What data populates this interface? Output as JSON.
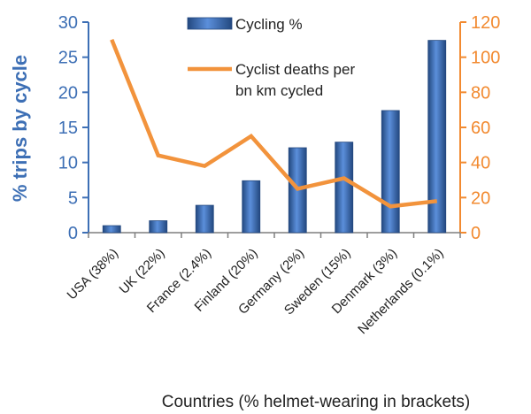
{
  "chart_data": {
    "type": "bar",
    "categories": [
      "USA (38%)",
      "UK (22%)",
      "France (2.4%)",
      "Finland (20%)",
      "Germany (2%)",
      "Sweden (15%)",
      "Denmark (3%)",
      "Netherlands (0.1%)"
    ],
    "series": [
      {
        "name": "Cycling %",
        "type": "bar",
        "axis": "left",
        "values": [
          1,
          1.7,
          3.9,
          7.4,
          12.1,
          12.9,
          17.4,
          27.4
        ]
      },
      {
        "name_lines": [
          "Cyclist deaths per",
          "bn km cycled"
        ],
        "type": "line",
        "axis": "right",
        "values": [
          110,
          44,
          38,
          55,
          25,
          31,
          15,
          18
        ]
      }
    ],
    "xlabel": "Countries (% helmet-wearing in brackets)",
    "ylabel": "% trips by cycle",
    "ylim": [
      0,
      30
    ],
    "y_ticks": [
      0,
      5,
      10,
      15,
      20,
      25,
      30
    ],
    "y2lim": [
      0,
      120
    ],
    "y2_ticks": [
      0,
      20,
      40,
      60,
      80,
      100,
      120
    ],
    "colors": {
      "bar": "#3f74c3",
      "bar_dark": "#23487f",
      "line": "#f2933c",
      "left_axis": "#3d6fb5",
      "right_axis": "#f28a30"
    },
    "legend_position": "top-center",
    "grid": false
  }
}
